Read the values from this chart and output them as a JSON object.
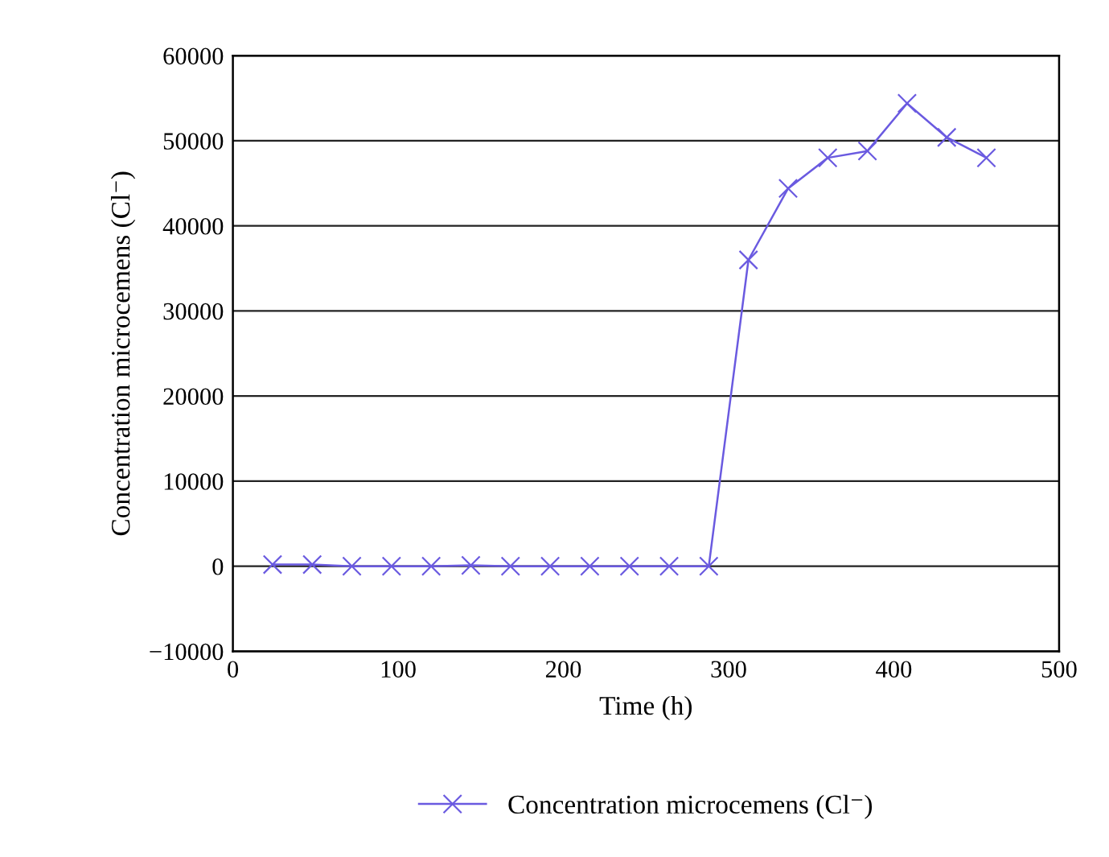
{
  "chart_data": {
    "type": "line",
    "xlabel": "Time (h)",
    "ylabel": "Concentration microcemens (Cl⁻)",
    "series": [
      {
        "name": "Concentration microcemens (Cl⁻)",
        "color": "#6a5ae0",
        "x": [
          24,
          48,
          72,
          96,
          120,
          144,
          168,
          192,
          216,
          240,
          264,
          288,
          312,
          336,
          360,
          384,
          408,
          432,
          456
        ],
        "values": [
          200,
          200,
          0,
          0,
          0,
          100,
          0,
          0,
          0,
          0,
          0,
          0,
          36000,
          44400,
          48000,
          48800,
          54400,
          50400,
          48000
        ]
      }
    ],
    "xlim": [
      0,
      500
    ],
    "xticks": [
      0,
      100,
      200,
      300,
      400,
      500
    ],
    "ylim": [
      -10000,
      60000
    ],
    "yticks": [
      {
        "value": -10000,
        "label": "−10000"
      },
      0,
      10000,
      20000,
      30000,
      40000,
      50000,
      60000
    ],
    "grid": "y",
    "legend": "bottom",
    "marker": "cross",
    "line_style": "solid"
  }
}
